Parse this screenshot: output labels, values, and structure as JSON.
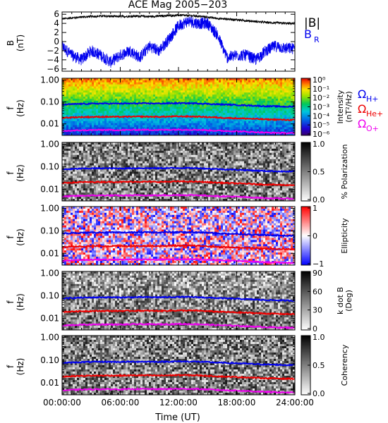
{
  "chart_data": {
    "type": "heatmap",
    "title": "ACE Mag 2005−203",
    "xlabel": "Time (UT)",
    "x_ticks": [
      "00:00:00",
      "06:00:00",
      "12:00:00",
      "18:00:00",
      "24:00:00"
    ],
    "x_range_hours": [
      0,
      24
    ],
    "field_panel": {
      "ylabel_main": "B",
      "ylabel_unit": "(nT)",
      "y_ticks": [
        "6",
        "4",
        "2",
        "0",
        "−2",
        "−4",
        "−6"
      ],
      "ylim": [
        -6.5,
        6.5
      ],
      "legend": {
        "B_total": "|B|",
        "B_radial": "B",
        "B_radial_sub": "R"
      },
      "colors": {
        "B_total": "#000000",
        "B_radial": "#0000ee"
      },
      "B_total_hours": [
        0,
        2,
        4,
        6,
        8,
        9,
        10,
        12,
        14,
        16,
        18,
        19,
        20,
        21,
        22,
        23,
        24
      ],
      "B_total_nT": [
        5.0,
        5.4,
        5.6,
        5.5,
        5.6,
        5.5,
        5.6,
        5.8,
        5.6,
        5.1,
        4.8,
        4.6,
        4.4,
        4.2,
        4.1,
        4.0,
        4.0
      ],
      "B_radial_hours": [
        0,
        1,
        2,
        3,
        4,
        5,
        6,
        7,
        8,
        9,
        10,
        11,
        12,
        13,
        14,
        15,
        16,
        17,
        18,
        19,
        20,
        21,
        22,
        23,
        24
      ],
      "B_radial_nT": [
        -1.0,
        -3.0,
        -4.0,
        -2.0,
        -3.0,
        -4.5,
        -3.0,
        -2.0,
        -3.5,
        -1.0,
        -2.0,
        0.5,
        3.5,
        4.5,
        4.0,
        4.0,
        1.5,
        -3.5,
        -3.0,
        -3.0,
        -4.0,
        -2.0,
        -1.0,
        -1.5,
        -1.5
      ]
    },
    "spectral_panels": [
      {
        "id": "intensity",
        "ylabel_main": "f",
        "ylabel_unit": "(Hz)",
        "colorbar_label_1": "Intensity",
        "colorbar_label_2": "(nT²/Hz)",
        "colorbar_ticks": [
          "10⁰",
          "10⁻¹",
          "10⁻²",
          "10⁻³",
          "10⁻⁴",
          "10⁻⁵",
          "10⁻⁶"
        ],
        "colormap": "rainbow"
      },
      {
        "id": "polarization",
        "ylabel_main": "f",
        "ylabel_unit": "(Hz)",
        "colorbar_label_1": "% Polarization",
        "colorbar_label_2": "",
        "colorbar_ticks": [
          "1.0",
          "0.5",
          "0.0"
        ],
        "colormap": "gray"
      },
      {
        "id": "ellipticity",
        "ylabel_main": "f",
        "ylabel_unit": "(Hz)",
        "colorbar_label_1": "Ellipticity",
        "colorbar_label_2": "",
        "colorbar_ticks": [
          "1",
          "0",
          "−1"
        ],
        "colormap": "bwr"
      },
      {
        "id": "kdotb",
        "ylabel_main": "f",
        "ylabel_unit": "(Hz)",
        "colorbar_label_1": "k dot B",
        "colorbar_label_2": "(Deg)",
        "colorbar_ticks": [
          "90",
          "60",
          "30",
          "0"
        ],
        "colormap": "gray"
      },
      {
        "id": "coherency",
        "ylabel_main": "f",
        "ylabel_unit": "(Hz)",
        "colorbar_label_1": "Coherency",
        "colorbar_label_2": "",
        "colorbar_ticks": [
          "1.0",
          "0.5",
          "0.0"
        ],
        "colormap": "gray"
      }
    ],
    "freq_ticks": [
      "1.00",
      "0.10",
      "0.01"
    ],
    "freq_range_hz": [
      0.003,
      1.2
    ],
    "gyro_legend": [
      {
        "symbol": "Ω",
        "sub": "H+",
        "color": "#0000ee"
      },
      {
        "symbol": "Ω",
        "sub": "He+",
        "color": "#ee0000"
      },
      {
        "symbol": "Ω",
        "sub": "O+",
        "color": "#ee00ee"
      }
    ],
    "gyro_lines": {
      "hours": [
        0,
        2,
        4,
        6,
        8,
        10,
        12,
        14,
        16,
        18,
        19,
        20,
        21,
        22,
        23,
        24
      ],
      "H_plus_hz": [
        0.075,
        0.082,
        0.085,
        0.084,
        0.086,
        0.085,
        0.088,
        0.086,
        0.078,
        0.073,
        0.07,
        0.067,
        0.064,
        0.063,
        0.061,
        0.061
      ],
      "He_plus_hz": [
        0.019,
        0.0205,
        0.021,
        0.021,
        0.0215,
        0.021,
        0.022,
        0.0215,
        0.0195,
        0.018,
        0.0175,
        0.0168,
        0.016,
        0.0158,
        0.0153,
        0.0153
      ],
      "O_plus_hz": [
        0.0047,
        0.0051,
        0.0053,
        0.0052,
        0.0054,
        0.0053,
        0.0055,
        0.0054,
        0.0049,
        0.0046,
        0.0044,
        0.0042,
        0.004,
        0.0039,
        0.0038,
        0.0038
      ]
    }
  }
}
